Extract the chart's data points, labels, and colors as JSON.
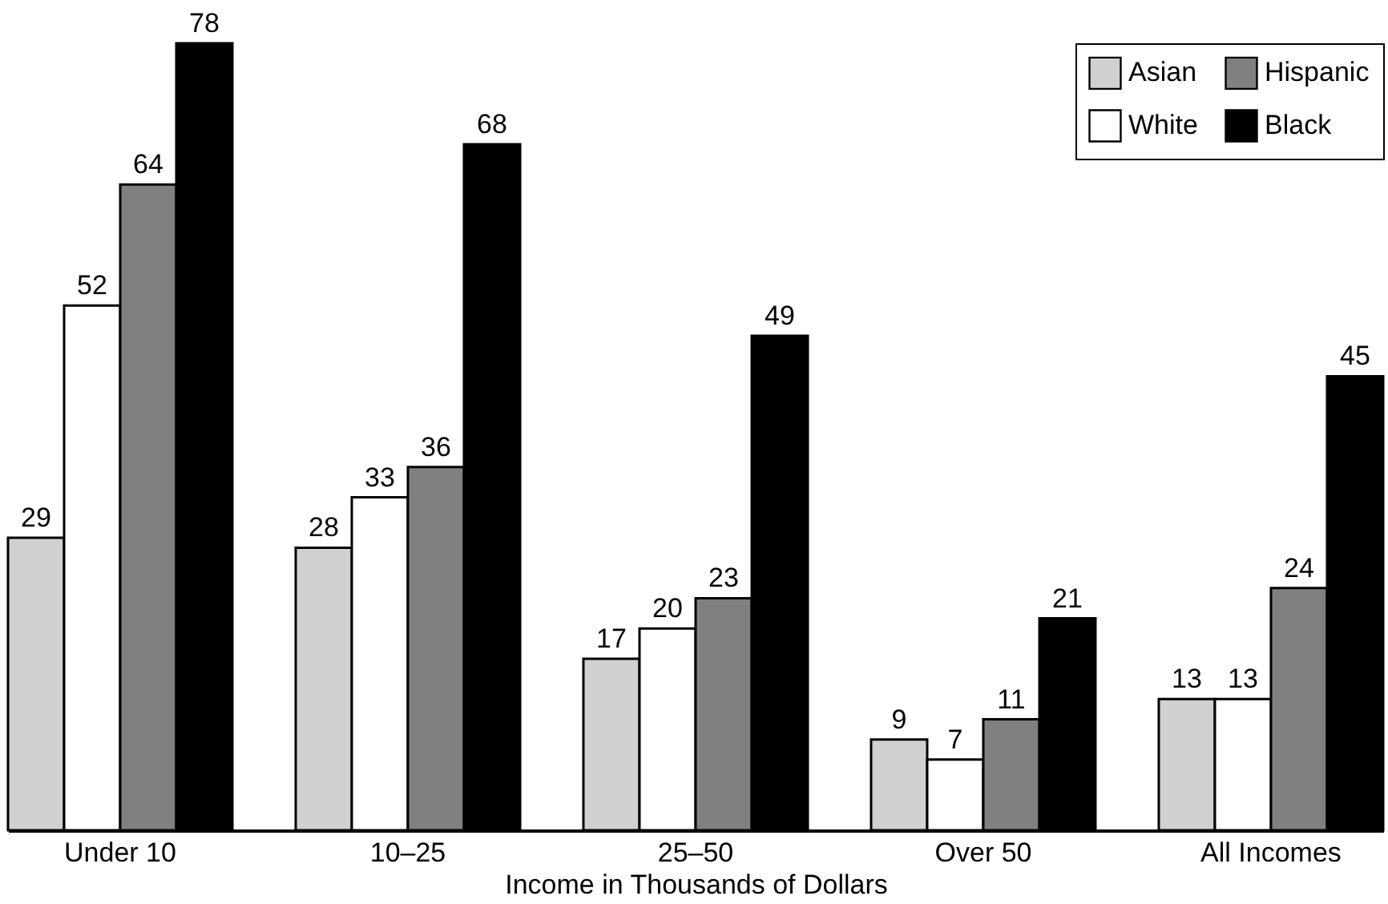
{
  "chart_data": {
    "type": "bar",
    "xlabel": "Income in Thousands of Dollars",
    "categories": [
      "Under 10",
      "10–25",
      "25–50",
      "Over 50",
      "All Incomes"
    ],
    "series": [
      {
        "name": "Asian",
        "color": "#d0d0d0",
        "values": [
          29,
          28,
          17,
          9,
          13
        ]
      },
      {
        "name": "White",
        "color": "#ffffff",
        "values": [
          52,
          33,
          20,
          7,
          13
        ]
      },
      {
        "name": "Hispanic",
        "color": "#808080",
        "values": [
          64,
          36,
          23,
          11,
          24
        ]
      },
      {
        "name": "Black",
        "color": "#000000",
        "values": [
          78,
          68,
          49,
          21,
          45
        ]
      }
    ],
    "data_labels": true,
    "tick_labels": "x",
    "legend": "top right"
  }
}
